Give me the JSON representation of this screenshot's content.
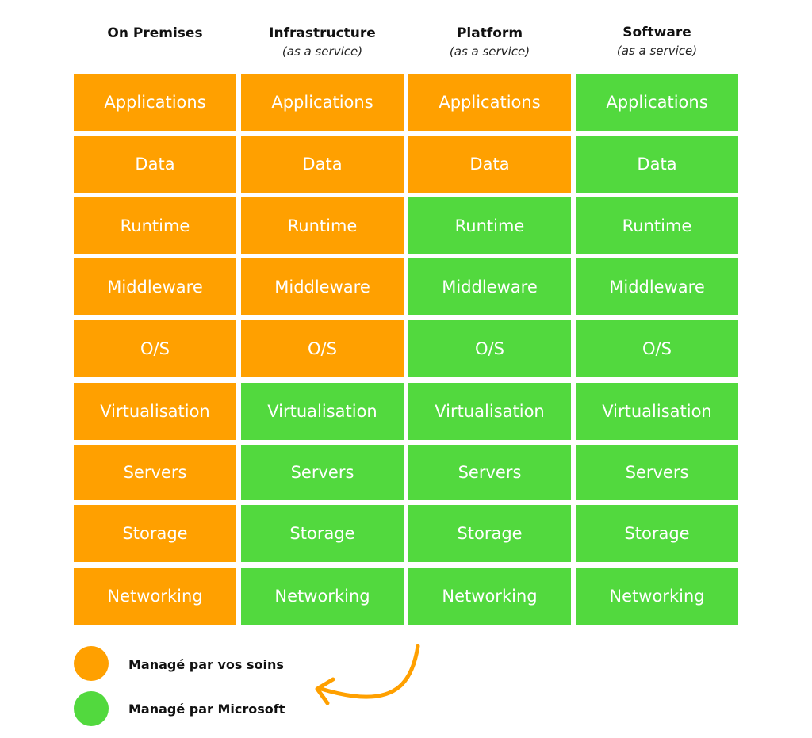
{
  "colors": {
    "self": "#FFA000",
    "microsoft": "#52D93E"
  },
  "columns": [
    {
      "title": "On Premises",
      "subtitle": ""
    },
    {
      "title": "Infrastructure",
      "subtitle": "(as a service)"
    },
    {
      "title": "Platform",
      "subtitle": "(as a service)"
    },
    {
      "title": "Software",
      "subtitle": "(as a service)"
    }
  ],
  "rows": [
    "Applications",
    "Data",
    "Runtime",
    "Middleware",
    "O/S",
    "Virtualisation",
    "Servers",
    "Storage",
    "Networking"
  ],
  "managed_by": [
    [
      "self",
      "self",
      "self",
      "microsoft"
    ],
    [
      "self",
      "self",
      "self",
      "microsoft"
    ],
    [
      "self",
      "self",
      "microsoft",
      "microsoft"
    ],
    [
      "self",
      "self",
      "microsoft",
      "microsoft"
    ],
    [
      "self",
      "self",
      "microsoft",
      "microsoft"
    ],
    [
      "self",
      "microsoft",
      "microsoft",
      "microsoft"
    ],
    [
      "self",
      "microsoft",
      "microsoft",
      "microsoft"
    ],
    [
      "self",
      "microsoft",
      "microsoft",
      "microsoft"
    ],
    [
      "self",
      "microsoft",
      "microsoft",
      "microsoft"
    ]
  ],
  "legend": {
    "self_label": "Managé par vos soins",
    "microsoft_label": "Managé par Microsoft"
  }
}
